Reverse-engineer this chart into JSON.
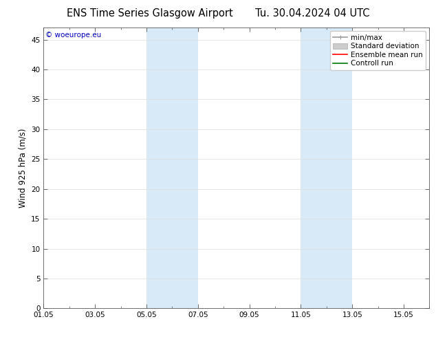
{
  "title": "ENS Time Series Glasgow Airport       Tu. 30.04.2024 04 UTC",
  "ylabel": "Wind 925 hPa (m/s)",
  "ylim": [
    0,
    47
  ],
  "yticks": [
    0,
    5,
    10,
    15,
    20,
    25,
    30,
    35,
    40,
    45
  ],
  "xlim": [
    0,
    15
  ],
  "xtick_labels": [
    "01.05",
    "03.05",
    "05.05",
    "07.05",
    "09.05",
    "11.05",
    "13.05",
    "15.05"
  ],
  "xtick_positions": [
    0,
    2,
    4,
    6,
    8,
    10,
    12,
    14
  ],
  "shaded_bands": [
    {
      "start": 4,
      "end": 6
    },
    {
      "start": 10,
      "end": 12
    }
  ],
  "shade_color": "#d8eaf8",
  "background_color": "#ffffff",
  "copyright_text": "© woeurope.eu",
  "copyright_color": "#0000bb",
  "legend_items": [
    {
      "label": "min/max",
      "color": "#999999",
      "lw": 1.2
    },
    {
      "label": "Standard deviation",
      "color": "#cccccc",
      "lw": 6
    },
    {
      "label": "Ensemble mean run",
      "color": "#ff0000",
      "lw": 1.2
    },
    {
      "label": "Controll run",
      "color": "#007700",
      "lw": 1.2
    }
  ],
  "grid_color": "#dddddd",
  "title_fontsize": 10.5,
  "label_fontsize": 8.5,
  "tick_fontsize": 7.5,
  "legend_fontsize": 7.5,
  "copyright_fontsize": 7.5,
  "fig_width": 6.34,
  "fig_height": 4.9,
  "dpi": 100
}
